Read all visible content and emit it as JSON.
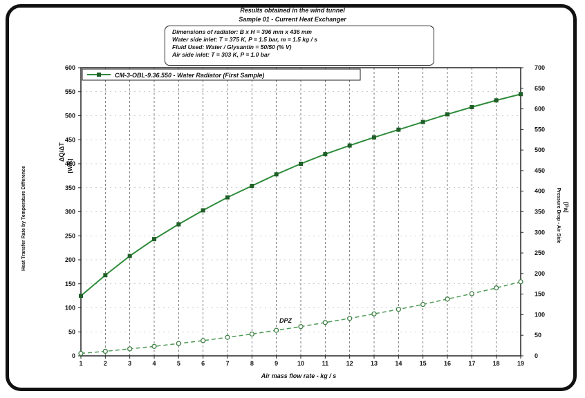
{
  "header": {
    "title": "Results obtained in the wind tunnel",
    "subtitle": "Sample 01 - Current Heat Exchanger"
  },
  "info_box": {
    "lines": [
      "Dimensions of radiator: B x H = 396 mm x 436 mm",
      "Water side inlet: T = 375 K, P = 1.5 bar, m = 1.5 kg / s",
      "Fluid Used: Water / Glysantin = 50/50 (% V)",
      "Air side inlet: T = 303 K, P = 1.0 bar"
    ]
  },
  "chart_data": {
    "type": "line",
    "xlabel": "Air mass flow rate - kg / s",
    "ylabel_left": "Heat Transfer Rate by Temperature Difference",
    "ylabel_left_symbol": "ΔQ/ΔT",
    "ylabel_left_unit": "[W/K]",
    "ylabel_right": "Pressure Drop - Air Side",
    "ylabel_right_unit": "[Pa]",
    "x": [
      1,
      2,
      3,
      4,
      5,
      6,
      7,
      8,
      9,
      10,
      11,
      12,
      13,
      14,
      15,
      16,
      17,
      18,
      19
    ],
    "xlim": [
      1,
      19
    ],
    "ylim_left": [
      0,
      600
    ],
    "ylim_right": [
      0,
      700
    ],
    "y_ticks_left": [
      0,
      50,
      100,
      150,
      200,
      250,
      300,
      350,
      400,
      450,
      500,
      550,
      600
    ],
    "y_ticks_right": [
      0,
      50,
      100,
      150,
      200,
      250,
      300,
      350,
      400,
      450,
      500,
      550,
      600,
      650,
      700
    ],
    "grid": "vertical dashed",
    "legend_position": "top-left",
    "annotation": "DPZ",
    "series": [
      {
        "name": "CM-3-OBL-9.36.550 - Water Radiator (First Sample)",
        "axis": "left",
        "style": "solid",
        "marker": "filled-square",
        "values": [
          125,
          168,
          208,
          243,
          274,
          303,
          330,
          354,
          378,
          400,
          420,
          438,
          455,
          471,
          487,
          503,
          518,
          532,
          545
        ]
      },
      {
        "name": "DPZ",
        "axis": "right",
        "style": "dashed",
        "marker": "open-circle",
        "values": [
          6,
          11,
          17,
          23,
          30,
          37,
          45,
          53,
          62,
          71,
          81,
          91,
          102,
          113,
          125,
          138,
          151,
          165,
          180
        ]
      }
    ]
  },
  "colors": {
    "line_main": "#2e8b3a",
    "line_pressure": "#4f9a55",
    "axis": "#222222",
    "grid": "#555555"
  }
}
